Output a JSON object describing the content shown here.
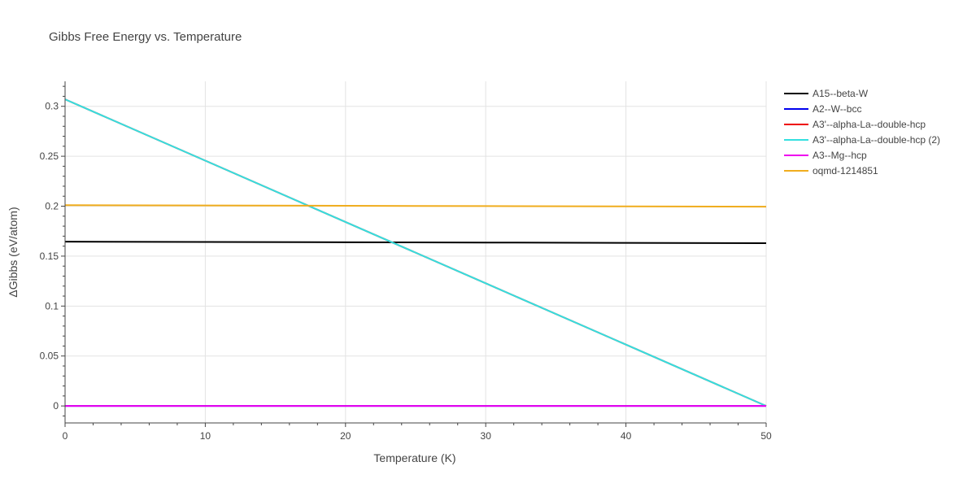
{
  "chart_data": {
    "type": "line",
    "title": "Gibbs Free Energy vs. Temperature",
    "xlabel": "Temperature (K)",
    "ylabel": "ΔGibbs (eV/atom)",
    "xlim": [
      0,
      50
    ],
    "ylim": [
      -0.017,
      0.325
    ],
    "xticks": [
      0,
      10,
      20,
      30,
      40,
      50
    ],
    "xtick_labels": [
      "0",
      "10",
      "20",
      "30",
      "40",
      "50"
    ],
    "yticks": [
      0,
      0.05,
      0.1,
      0.15,
      0.2,
      0.25,
      0.3
    ],
    "ytick_labels": [
      "0",
      "0.05",
      "0.1",
      "0.15",
      "0.2",
      "0.25",
      "0.3"
    ],
    "grid": true,
    "legend_position": "right",
    "series": [
      {
        "name": "A15--beta-W",
        "color": "#000000",
        "x": [
          0,
          10,
          20,
          30,
          40,
          50
        ],
        "y": [
          0.1645,
          0.1642,
          0.1639,
          0.1636,
          0.1633,
          0.163
        ]
      },
      {
        "name": "A2--W--bcc",
        "color": "#0000ee",
        "x": [
          0,
          10,
          20,
          30,
          40,
          50
        ],
        "y": [
          0,
          0,
          0,
          0,
          0,
          0
        ]
      },
      {
        "name": "A3'--alpha-La--double-hcp",
        "color": "#ee0000",
        "x": [
          0,
          10,
          20,
          30,
          40,
          50
        ],
        "y": [
          0.307,
          0.2456,
          0.1842,
          0.1228,
          0.0614,
          0
        ]
      },
      {
        "name": "A3'--alpha-La--double-hcp (2)",
        "color": "#33e0e0",
        "x": [
          0,
          10,
          20,
          30,
          40,
          50
        ],
        "y": [
          0.307,
          0.2456,
          0.1842,
          0.1228,
          0.0614,
          0
        ]
      },
      {
        "name": "A3--Mg--hcp",
        "color": "#ee00ee",
        "x": [
          0,
          10,
          20,
          30,
          40,
          50
        ],
        "y": [
          0,
          0,
          0,
          0,
          0,
          0
        ]
      },
      {
        "name": "oqmd-1214851",
        "color": "#f0ad1e",
        "x": [
          0,
          10,
          20,
          30,
          40,
          50
        ],
        "y": [
          0.201,
          0.2007,
          0.2004,
          0.2001,
          0.1998,
          0.1995
        ]
      }
    ]
  }
}
